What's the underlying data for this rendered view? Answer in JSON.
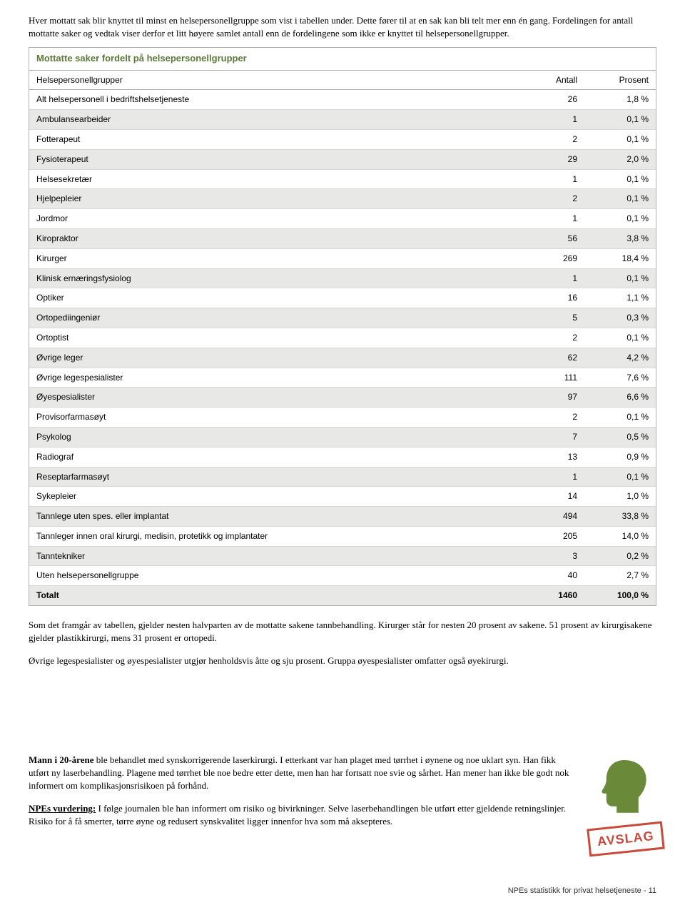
{
  "intro": "Hver mottatt sak blir knyttet til minst en helsepersonellgruppe som vist i tabellen under. Dette fører til at en sak kan bli telt mer enn én gang. Fordelingen for antall mottatte saker og vedtak viser derfor et litt høyere samlet antall enn de fordelingene som ikke er knyttet til helsepersonellgrupper.",
  "table": {
    "title": "Mottatte saker fordelt på helsepersonellgrupper",
    "columns": [
      "Helsepersonellgrupper",
      "Antall",
      "Prosent"
    ],
    "rows": [
      {
        "label": "Alt helsepersonell i bedriftshelsetjeneste",
        "antall": "26",
        "prosent": "1,8 %",
        "alt": false
      },
      {
        "label": "Ambulansearbeider",
        "antall": "1",
        "prosent": "0,1 %",
        "alt": true
      },
      {
        "label": "Fotterapeut",
        "antall": "2",
        "prosent": "0,1 %",
        "alt": false
      },
      {
        "label": "Fysioterapeut",
        "antall": "29",
        "prosent": "2,0 %",
        "alt": true
      },
      {
        "label": "Helsesekretær",
        "antall": "1",
        "prosent": "0,1 %",
        "alt": false
      },
      {
        "label": "Hjelpepleier",
        "antall": "2",
        "prosent": "0,1 %",
        "alt": true
      },
      {
        "label": "Jordmor",
        "antall": "1",
        "prosent": "0,1 %",
        "alt": false
      },
      {
        "label": "Kiropraktor",
        "antall": "56",
        "prosent": "3,8 %",
        "alt": true
      },
      {
        "label": "Kirurger",
        "antall": "269",
        "prosent": "18,4 %",
        "alt": false
      },
      {
        "label": "Klinisk ernæringsfysiolog",
        "antall": "1",
        "prosent": "0,1 %",
        "alt": true
      },
      {
        "label": "Optiker",
        "antall": "16",
        "prosent": "1,1 %",
        "alt": false
      },
      {
        "label": "Ortopediingeniør",
        "antall": "5",
        "prosent": "0,3 %",
        "alt": true
      },
      {
        "label": "Ortoptist",
        "antall": "2",
        "prosent": "0,1 %",
        "alt": false
      },
      {
        "label": "Øvrige leger",
        "antall": "62",
        "prosent": "4,2 %",
        "alt": true
      },
      {
        "label": "Øvrige legespesialister",
        "antall": "111",
        "prosent": "7,6 %",
        "alt": false
      },
      {
        "label": "Øyespesialister",
        "antall": "97",
        "prosent": "6,6 %",
        "alt": true
      },
      {
        "label": "Provisorfarmasøyt",
        "antall": "2",
        "prosent": "0,1 %",
        "alt": false
      },
      {
        "label": "Psykolog",
        "antall": "7",
        "prosent": "0,5 %",
        "alt": true
      },
      {
        "label": "Radiograf",
        "antall": "13",
        "prosent": "0,9 %",
        "alt": false
      },
      {
        "label": "Reseptarfarmasøyt",
        "antall": "1",
        "prosent": "0,1 %",
        "alt": true
      },
      {
        "label": "Sykepleier",
        "antall": "14",
        "prosent": "1,0 %",
        "alt": false
      },
      {
        "label": "Tannlege uten spes. eller implantat",
        "antall": "494",
        "prosent": "33,8 %",
        "alt": true
      },
      {
        "label": "Tannleger innen oral kirurgi, medisin, protetikk og implantater",
        "antall": "205",
        "prosent": "14,0 %",
        "alt": false
      },
      {
        "label": "Tanntekniker",
        "antall": "3",
        "prosent": "0,2 %",
        "alt": true
      },
      {
        "label": "Uten helsepersonellgruppe",
        "antall": "40",
        "prosent": "2,7 %",
        "alt": false
      }
    ],
    "total": {
      "label": "Totalt",
      "antall": "1460",
      "prosent": "100,0 %"
    }
  },
  "para1": "Som det framgår av tabellen, gjelder nesten halvparten av de mottatte sakene tannbehandling. Kirurger står for nesten 20 prosent av sakene. 51 prosent av kirurgisakene gjelder plastikkirurgi, mens 31 prosent er ortopedi.",
  "para2": "Øvrige legespesialister og øyespesialister utgjør henholdsvis åtte og sju prosent. Gruppa øyespesialister omfatter også øyekirurgi.",
  "case": {
    "p1_bold": "Mann i 20-årene",
    "p1_rest": " ble behandlet med synskorrigerende laserkirurgi. I etterkant var han plaget med tørrhet i øynene og noe uklart syn. Han fikk utført ny laserbehandling. Plagene med tørrhet ble noe bedre etter dette, men han har fortsatt noe svie og sårhet.  Han mener han ikke ble godt nok informert om komplikasjonsrisikoen på forhånd.",
    "p2_bold": "NPEs vurdering:",
    "p2_rest": " I følge journalen ble han informert om risiko og bivirkninger. Selve laserbehandlingen ble utført etter gjeldende retningslinjer. Risiko for å få smerter, tørre øyne og redusert synskvalitet ligger innenfor hva som må aksepteres.",
    "stamp": "AVSLAG"
  },
  "footer": "NPEs statistikk for privat helsetjeneste - 11",
  "colors": {
    "table_title": "#5a7a3a",
    "alt_row": "#e8e8e6",
    "border": "#b0b0b0",
    "head_icon": "#6a8a3a",
    "stamp": "#c94a3b"
  }
}
